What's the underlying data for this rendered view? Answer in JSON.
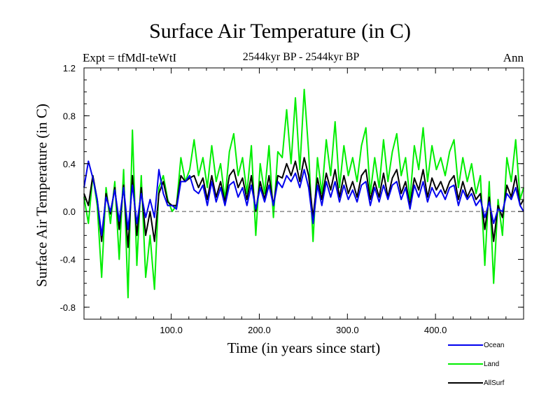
{
  "header": {
    "title": "Surface Air Temperature (in C)",
    "experiment": "Expt = tfMdI-teWtI",
    "subtitle": "2544kyr BP - 2544kyr BP",
    "season": "Ann"
  },
  "chart_data": {
    "type": "line",
    "title": "Surface Air Temperature (in C)",
    "xlabel": "Time (in years since start)",
    "ylabel": "Surface Air Temperature (in C)",
    "xlim": [
      1,
      500
    ],
    "ylim": [
      -0.9,
      1.2
    ],
    "xticks": [
      {
        "v": 100,
        "label": "100.0"
      },
      {
        "v": 200,
        "label": "200.0"
      },
      {
        "v": 300,
        "label": "300.0"
      },
      {
        "v": 400,
        "label": "400.0"
      }
    ],
    "yticks": [
      {
        "v": 1.2,
        "label": "1.2"
      },
      {
        "v": 0.8,
        "label": "0.8"
      },
      {
        "v": 0.4,
        "label": "0.4"
      },
      {
        "v": 0.0,
        "label": "0.0"
      },
      {
        "v": -0.4,
        "label": "-0.4"
      },
      {
        "v": -0.8,
        "label": "-0.8"
      }
    ],
    "zero_line": 0.0,
    "legend_position": "bottom-right",
    "series": [
      {
        "name": "Land",
        "color": "#00ee00",
        "x": [
          1,
          6,
          11,
          16,
          21,
          26,
          31,
          36,
          41,
          46,
          51,
          56,
          61,
          66,
          71,
          76,
          81,
          86,
          91,
          96,
          101,
          106,
          111,
          116,
          121,
          126,
          131,
          136,
          141,
          146,
          151,
          156,
          161,
          166,
          171,
          176,
          181,
          186,
          191,
          196,
          201,
          206,
          211,
          216,
          221,
          226,
          231,
          236,
          241,
          246,
          251,
          256,
          261,
          266,
          271,
          276,
          281,
          286,
          291,
          296,
          301,
          306,
          311,
          316,
          321,
          326,
          331,
          336,
          341,
          346,
          351,
          356,
          361,
          366,
          371,
          376,
          381,
          386,
          391,
          396,
          401,
          406,
          411,
          416,
          421,
          426,
          431,
          436,
          441,
          446,
          451,
          456,
          461,
          466,
          471,
          476,
          481,
          486,
          491,
          496,
          500
        ],
        "y": [
          0.12,
          -0.1,
          0.3,
          0.05,
          -0.55,
          0.2,
          -0.1,
          0.25,
          -0.4,
          0.35,
          -0.72,
          0.68,
          -0.45,
          0.3,
          -0.55,
          -0.2,
          -0.65,
          0.2,
          0.3,
          0.1,
          0.0,
          0.05,
          0.45,
          0.25,
          0.35,
          0.6,
          0.3,
          0.45,
          0.2,
          0.55,
          0.25,
          0.4,
          0.1,
          0.5,
          0.65,
          0.3,
          0.45,
          0.15,
          0.55,
          -0.2,
          0.4,
          0.15,
          0.55,
          -0.05,
          0.5,
          0.45,
          0.85,
          0.4,
          0.95,
          0.35,
          1.02,
          0.5,
          -0.25,
          0.45,
          0.15,
          0.6,
          0.3,
          0.75,
          0.2,
          0.55,
          0.3,
          0.45,
          0.25,
          0.55,
          0.7,
          0.15,
          0.45,
          0.2,
          0.6,
          0.25,
          0.5,
          0.65,
          0.3,
          0.45,
          0.1,
          0.55,
          0.35,
          0.7,
          0.25,
          0.55,
          0.35,
          0.45,
          0.3,
          0.5,
          0.6,
          0.2,
          0.45,
          0.25,
          0.4,
          0.15,
          0.3,
          -0.45,
          0.25,
          -0.6,
          0.1,
          -0.2,
          0.45,
          0.25,
          0.6,
          0.1,
          0.2
        ]
      },
      {
        "name": "AllSurf",
        "color": "#000000",
        "x": [
          1,
          6,
          11,
          16,
          21,
          26,
          31,
          36,
          41,
          46,
          51,
          56,
          61,
          66,
          71,
          76,
          81,
          86,
          91,
          96,
          101,
          106,
          111,
          116,
          121,
          126,
          131,
          136,
          141,
          146,
          151,
          156,
          161,
          166,
          171,
          176,
          181,
          186,
          191,
          196,
          201,
          206,
          211,
          216,
          221,
          226,
          231,
          236,
          241,
          246,
          251,
          256,
          261,
          266,
          271,
          276,
          281,
          286,
          291,
          296,
          301,
          306,
          311,
          316,
          321,
          326,
          331,
          336,
          341,
          346,
          351,
          356,
          361,
          366,
          371,
          376,
          381,
          386,
          391,
          396,
          401,
          406,
          411,
          416,
          421,
          426,
          431,
          436,
          441,
          446,
          451,
          456,
          461,
          466,
          471,
          476,
          481,
          486,
          491,
          496,
          500
        ],
        "y": [
          0.15,
          0.05,
          0.3,
          0.1,
          -0.25,
          0.15,
          -0.02,
          0.2,
          -0.15,
          0.22,
          -0.3,
          0.3,
          -0.2,
          0.2,
          -0.2,
          0.0,
          -0.25,
          0.15,
          0.25,
          0.08,
          0.05,
          0.05,
          0.3,
          0.25,
          0.28,
          0.3,
          0.2,
          0.28,
          0.1,
          0.3,
          0.12,
          0.25,
          0.08,
          0.3,
          0.35,
          0.2,
          0.28,
          0.1,
          0.3,
          0.0,
          0.25,
          0.1,
          0.3,
          0.05,
          0.3,
          0.28,
          0.4,
          0.3,
          0.42,
          0.25,
          0.45,
          0.3,
          -0.05,
          0.28,
          0.1,
          0.32,
          0.18,
          0.35,
          0.12,
          0.3,
          0.15,
          0.25,
          0.12,
          0.3,
          0.35,
          0.1,
          0.25,
          0.12,
          0.32,
          0.12,
          0.28,
          0.35,
          0.15,
          0.25,
          0.05,
          0.28,
          0.18,
          0.35,
          0.12,
          0.28,
          0.18,
          0.25,
          0.15,
          0.25,
          0.3,
          0.1,
          0.25,
          0.12,
          0.2,
          0.1,
          0.15,
          -0.15,
          0.12,
          -0.25,
          0.05,
          -0.05,
          0.22,
          0.12,
          0.3,
          0.05,
          0.1
        ]
      },
      {
        "name": "Ocean",
        "color": "#0000ee",
        "x": [
          1,
          6,
          11,
          16,
          21,
          26,
          31,
          36,
          41,
          46,
          51,
          56,
          61,
          66,
          71,
          76,
          81,
          86,
          91,
          96,
          101,
          106,
          111,
          116,
          121,
          126,
          131,
          136,
          141,
          146,
          151,
          156,
          161,
          166,
          171,
          176,
          181,
          186,
          191,
          196,
          201,
          206,
          211,
          216,
          221,
          226,
          231,
          236,
          241,
          246,
          251,
          256,
          261,
          266,
          271,
          276,
          281,
          286,
          291,
          296,
          301,
          306,
          311,
          316,
          321,
          326,
          331,
          336,
          341,
          346,
          351,
          356,
          361,
          366,
          371,
          376,
          381,
          386,
          391,
          396,
          401,
          406,
          411,
          416,
          421,
          426,
          431,
          436,
          441,
          446,
          451,
          456,
          461,
          466,
          471,
          476,
          481,
          486,
          491,
          496,
          500
        ],
        "y": [
          0.2,
          0.42,
          0.28,
          0.1,
          -0.2,
          0.12,
          0.0,
          0.18,
          -0.08,
          0.2,
          -0.15,
          0.22,
          -0.1,
          0.15,
          -0.05,
          0.1,
          -0.05,
          0.35,
          0.15,
          0.05,
          0.05,
          0.02,
          0.25,
          0.25,
          0.3,
          0.18,
          0.15,
          0.22,
          0.05,
          0.25,
          0.08,
          0.2,
          0.05,
          0.22,
          0.25,
          0.12,
          0.2,
          0.05,
          0.22,
          0.02,
          0.2,
          0.08,
          0.22,
          0.05,
          0.25,
          0.2,
          0.3,
          0.25,
          0.32,
          0.2,
          0.35,
          0.2,
          -0.1,
          0.22,
          0.05,
          0.25,
          0.12,
          0.25,
          0.08,
          0.22,
          0.1,
          0.18,
          0.08,
          0.22,
          0.25,
          0.05,
          0.2,
          0.08,
          0.22,
          0.1,
          0.22,
          0.25,
          0.1,
          0.2,
          0.02,
          0.22,
          0.12,
          0.25,
          0.08,
          0.2,
          0.12,
          0.18,
          0.1,
          0.2,
          0.22,
          0.05,
          0.18,
          0.1,
          0.15,
          0.05,
          0.1,
          -0.05,
          0.08,
          -0.1,
          0.02,
          0.0,
          0.15,
          0.1,
          0.2,
          0.05,
          0.0
        ]
      }
    ],
    "legend": [
      {
        "name": "Ocean",
        "color": "#0000ee"
      },
      {
        "name": "Land",
        "color": "#00ee00"
      },
      {
        "name": "AllSurf",
        "color": "#000000"
      }
    ]
  }
}
